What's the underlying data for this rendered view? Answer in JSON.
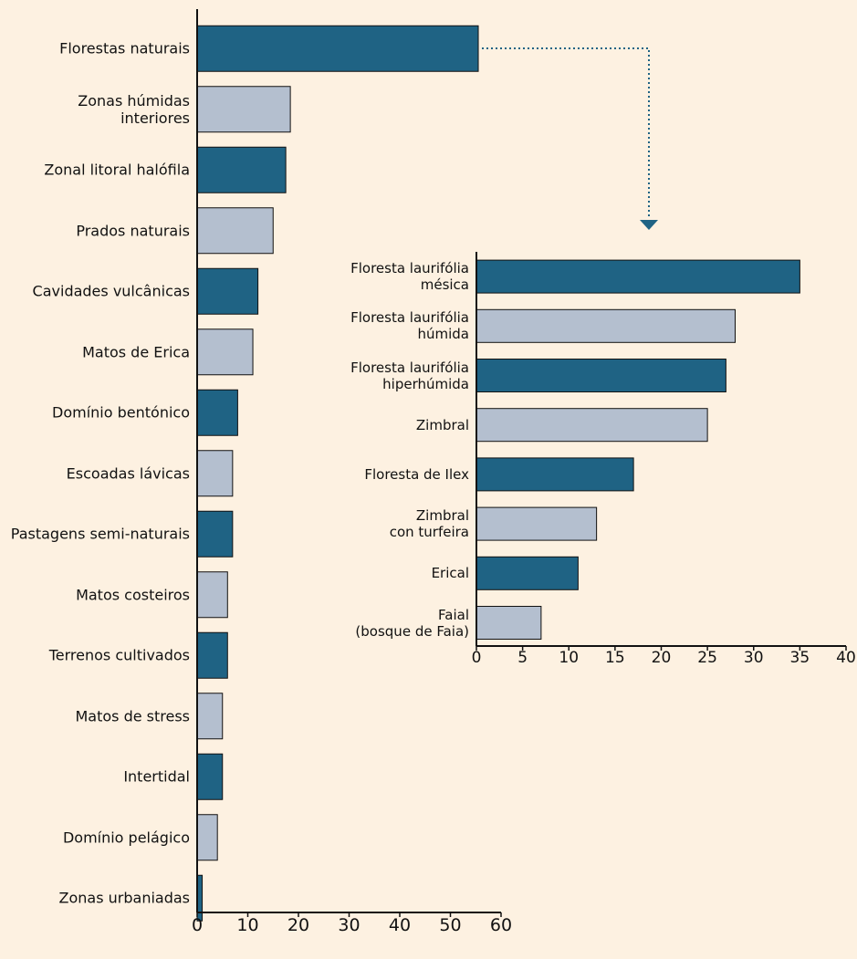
{
  "chart_data": [
    {
      "type": "bar",
      "orientation": "horizontal",
      "categories": [
        "Florestas naturais",
        "Zonas húmidas\ninteriores",
        "Zonal litoral halófila",
        "Prados naturais",
        "Cavidades vulcânicas",
        "Matos de Erica",
        "Domínio bentónico",
        "Escoadas lávicas",
        "Pastagens semi-naturais",
        "Matos costeiros",
        "Terrenos cultivados",
        "Matos de stress",
        "Intertidal",
        "Domínio pelágico",
        "Zonas urbaniadas"
      ],
      "values": [
        55.5,
        18.4,
        17.5,
        15,
        12,
        11,
        8,
        7,
        7,
        6,
        6,
        5,
        5,
        4,
        1
      ],
      "colors": [
        "#1f6384",
        "#b4bfcf",
        "#1f6384",
        "#b4bfcf",
        "#1f6384",
        "#b4bfcf",
        "#1f6384",
        "#b4bfcf",
        "#1f6384",
        "#b4bfcf",
        "#1f6384",
        "#b4bfcf",
        "#1f6384",
        "#b4bfcf",
        "#1f6384"
      ],
      "xlim": [
        0,
        60
      ],
      "xticks": [
        0,
        10,
        20,
        30,
        40,
        50,
        60
      ]
    },
    {
      "type": "bar",
      "orientation": "horizontal",
      "categories": [
        "Floresta laurifólia\nmésica",
        "Floresta laurifólia\nhúmida",
        "Floresta laurifólia\nhiperhúmida",
        "Zimbral",
        "Floresta de Ilex",
        "Zimbral\ncon turfeira",
        "Erical",
        "Faial\n(bosque de Faia)"
      ],
      "values": [
        35,
        28,
        27,
        25,
        17,
        13,
        11,
        7
      ],
      "colors": [
        "#1f6384",
        "#b4bfcf",
        "#1f6384",
        "#b4bfcf",
        "#1f6384",
        "#b4bfcf",
        "#1f6384",
        "#b4bfcf"
      ],
      "xlim": [
        0,
        40
      ],
      "xticks": [
        0,
        5,
        10,
        15,
        20,
        25,
        30,
        35,
        40
      ]
    }
  ]
}
